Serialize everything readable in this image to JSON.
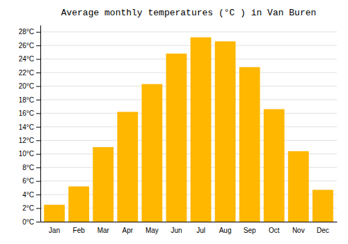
{
  "chart_data": {
    "type": "bar",
    "title": "Average monthly temperatures (°C ) in Van Buren",
    "categories": [
      "Jan",
      "Feb",
      "Mar",
      "Apr",
      "May",
      "Jun",
      "Jul",
      "Aug",
      "Sep",
      "Oct",
      "Nov",
      "Dec"
    ],
    "values": [
      2.5,
      5.2,
      11.0,
      16.2,
      20.3,
      24.8,
      27.2,
      26.6,
      22.8,
      16.6,
      10.4,
      4.7
    ],
    "color": "#FFB700",
    "ylim": [
      0,
      29
    ],
    "yticks": [
      {
        "value": 0,
        "label": "0°C"
      },
      {
        "value": 2,
        "label": "2°C"
      },
      {
        "value": 4,
        "label": "4°C"
      },
      {
        "value": 6,
        "label": "6°C"
      },
      {
        "value": 8,
        "label": "8°C"
      },
      {
        "value": 10,
        "label": "10°C"
      },
      {
        "value": 12,
        "label": "12°C"
      },
      {
        "value": 14,
        "label": "14°C"
      },
      {
        "value": 16,
        "label": "16°C"
      },
      {
        "value": 18,
        "label": "18°C"
      },
      {
        "value": 20,
        "label": "20°C"
      },
      {
        "value": 22,
        "label": "22°C"
      },
      {
        "value": 24,
        "label": "24°C"
      },
      {
        "value": 26,
        "label": "26°C"
      },
      {
        "value": 28,
        "label": "28°C"
      }
    ],
    "grid": true
  }
}
